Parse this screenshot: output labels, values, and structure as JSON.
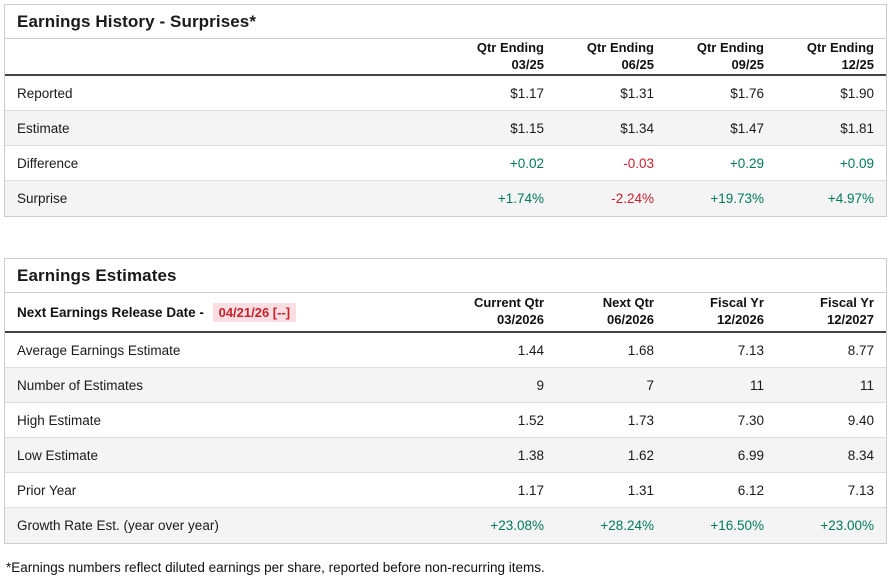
{
  "colors": {
    "positive": "#007a5a",
    "negative": "#c9202e",
    "highlight_bg": "#fbdee1"
  },
  "history_table": {
    "title": "Earnings History - Surprises*",
    "columns": [
      {
        "line1": "Qtr Ending",
        "line2": "03/25"
      },
      {
        "line1": "Qtr Ending",
        "line2": "06/25"
      },
      {
        "line1": "Qtr Ending",
        "line2": "09/25"
      },
      {
        "line1": "Qtr Ending",
        "line2": "12/25"
      }
    ],
    "rows": [
      {
        "label": "Reported",
        "values": [
          "$1.17",
          "$1.31",
          "$1.76",
          "$1.90"
        ],
        "tones": [
          "",
          "",
          "",
          ""
        ]
      },
      {
        "label": "Estimate",
        "values": [
          "$1.15",
          "$1.34",
          "$1.47",
          "$1.81"
        ],
        "tones": [
          "",
          "",
          "",
          ""
        ]
      },
      {
        "label": "Difference",
        "values": [
          "+0.02",
          "-0.03",
          "+0.29",
          "+0.09"
        ],
        "tones": [
          "pos",
          "neg",
          "pos",
          "pos"
        ]
      },
      {
        "label": "Surprise",
        "values": [
          "+1.74%",
          "-2.24%",
          "+19.73%",
          "+4.97%"
        ],
        "tones": [
          "pos",
          "neg",
          "pos",
          "pos"
        ]
      }
    ]
  },
  "estimates_table": {
    "title": "Earnings Estimates",
    "release_label": "Next Earnings Release Date -",
    "release_date": "04/21/26 [--]",
    "columns": [
      {
        "line1": "Current Qtr",
        "line2": "03/2026"
      },
      {
        "line1": "Next Qtr",
        "line2": "06/2026"
      },
      {
        "line1": "Fiscal Yr",
        "line2": "12/2026"
      },
      {
        "line1": "Fiscal Yr",
        "line2": "12/2027"
      }
    ],
    "rows": [
      {
        "label": "Average Earnings Estimate",
        "values": [
          "1.44",
          "1.68",
          "7.13",
          "8.77"
        ],
        "tones": [
          "",
          "",
          "",
          ""
        ]
      },
      {
        "label": "Number of Estimates",
        "values": [
          "9",
          "7",
          "11",
          "11"
        ],
        "tones": [
          "",
          "",
          "",
          ""
        ]
      },
      {
        "label": "High Estimate",
        "values": [
          "1.52",
          "1.73",
          "7.30",
          "9.40"
        ],
        "tones": [
          "",
          "",
          "",
          ""
        ]
      },
      {
        "label": "Low Estimate",
        "values": [
          "1.38",
          "1.62",
          "6.99",
          "8.34"
        ],
        "tones": [
          "",
          "",
          "",
          ""
        ]
      },
      {
        "label": "Prior Year",
        "values": [
          "1.17",
          "1.31",
          "6.12",
          "7.13"
        ],
        "tones": [
          "",
          "",
          "",
          ""
        ]
      },
      {
        "label": "Growth Rate Est. (year over year)",
        "values": [
          "+23.08%",
          "+28.24%",
          "+16.50%",
          "+23.00%"
        ],
        "tones": [
          "pos",
          "pos",
          "pos",
          "pos"
        ]
      }
    ]
  },
  "page": {
    "footnote": "*Earnings numbers reflect diluted earnings per share, reported before non-recurring items."
  }
}
